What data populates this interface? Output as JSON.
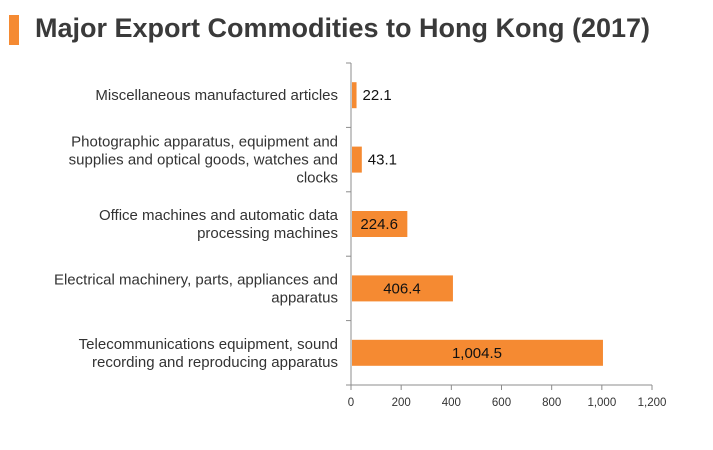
{
  "header": {
    "title": "Major Export Commodities to Hong Kong (2017)",
    "accent_color": "#f58a32"
  },
  "chart_data": {
    "type": "bar",
    "orientation": "horizontal",
    "title": "Major Export Commodities to Hong Kong (2017)",
    "xlabel": "",
    "ylabel": "",
    "xlim": [
      0,
      1200
    ],
    "xticks": [
      0,
      200,
      400,
      600,
      800,
      1000,
      1200
    ],
    "xtick_labels": [
      "0",
      "200",
      "400",
      "600",
      "800",
      "1,000",
      "1,200"
    ],
    "grid": false,
    "bar_color": "#f58a32",
    "categories": [
      [
        "Miscellaneous manufactured articles"
      ],
      [
        "Photographic apparatus, equipment and",
        "supplies and optical goods, watches and",
        "clocks"
      ],
      [
        "Office machines and automatic data",
        "processing machines"
      ],
      [
        "Electrical machinery, parts, appliances and",
        "apparatus"
      ],
      [
        "Telecommunications equipment, sound",
        "recording and reproducing apparatus"
      ]
    ],
    "values": [
      22.1,
      43.1,
      224.6,
      406.4,
      1004.5
    ],
    "data_labels": [
      "22.1",
      "43.1",
      "224.6",
      "406.4",
      "1,004.5"
    ]
  }
}
